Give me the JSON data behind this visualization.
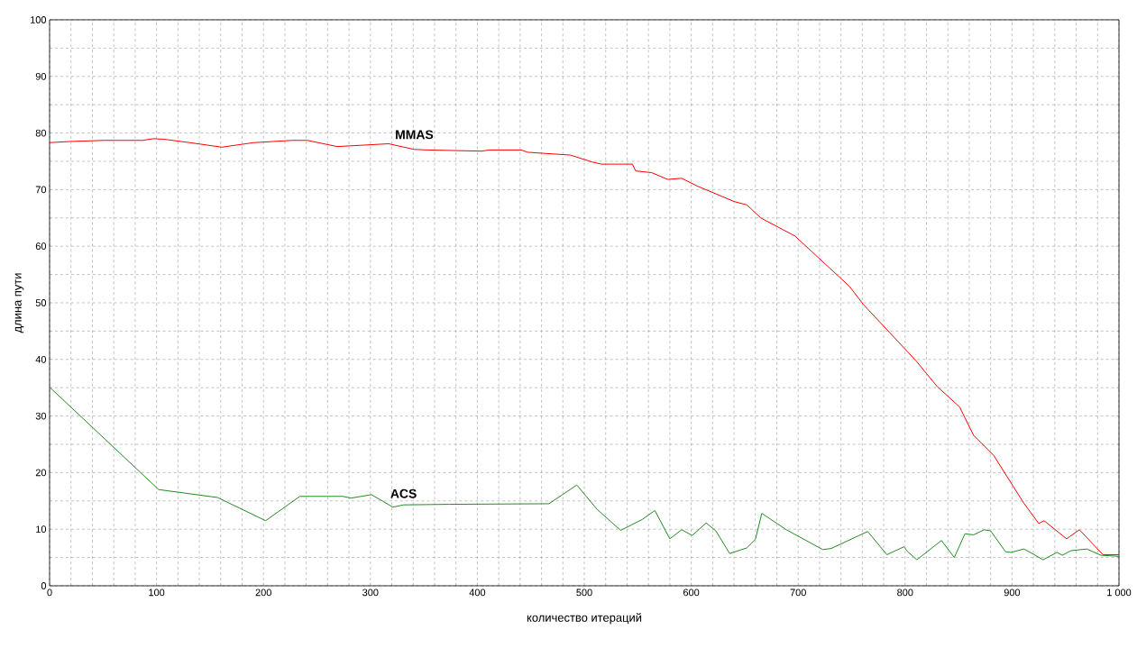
{
  "chart_data": {
    "type": "line",
    "xlabel": "количество итераций",
    "ylabel": "длина пути",
    "xlim": [
      0,
      1000
    ],
    "ylim": [
      0,
      100
    ],
    "xticks": [
      0,
      100,
      200,
      300,
      400,
      500,
      600,
      700,
      800,
      900,
      {
        "value": 1000,
        "label": "1 000"
      }
    ],
    "yticks": [
      0,
      10,
      20,
      30,
      40,
      50,
      60,
      70,
      80,
      90,
      100
    ],
    "grid": true,
    "legend": false,
    "marker": "none",
    "line_style": "solid",
    "series": [
      {
        "name": "MMAS",
        "color": "#ff0000",
        "x": [
          0,
          19,
          51,
          87,
          97,
          107,
          131,
          161,
          191,
          227,
          241,
          269,
          317,
          341,
          354,
          404,
          411,
          441,
          447,
          487,
          507,
          516,
          545,
          548,
          563,
          578,
          591,
          606,
          640,
          652,
          665,
          697,
          748,
          761,
          810,
          830,
          851,
          864,
          883,
          911,
          925,
          930,
          951,
          963,
          985,
          1000
        ],
        "values": [
          78.3,
          78.5,
          78.7,
          78.7,
          79,
          78.9,
          78.3,
          77.5,
          78.3,
          78.7,
          78.7,
          77.6,
          78.1,
          77.1,
          77,
          76.8,
          77,
          77,
          76.6,
          76.1,
          74.9,
          74.5,
          74.5,
          73.3,
          73,
          71.8,
          72,
          70.6,
          67.9,
          67.3,
          65,
          61.8,
          52.9,
          49.7,
          39.8,
          35.2,
          31.6,
          26.6,
          23,
          14.6,
          11,
          11.5,
          8.3,
          9.9,
          5.5,
          5.5
        ]
      },
      {
        "name": "ACS",
        "color": "#228b22",
        "x": [
          0,
          102,
          157,
          202,
          234,
          274,
          282,
          301,
          321,
          331,
          374,
          467,
          493,
          512,
          534,
          554,
          566,
          580,
          591,
          601,
          614,
          623,
          636,
          652,
          660,
          666,
          689,
          723,
          731,
          765,
          783,
          799,
          802,
          811,
          834,
          846,
          856,
          864,
          874,
          880,
          894,
          899,
          911,
          919,
          929,
          942,
          947,
          955,
          970,
          983,
          1000
        ],
        "values": [
          35.1,
          17,
          15.6,
          11.5,
          15.8,
          15.8,
          15.5,
          16.1,
          13.9,
          14.3,
          14.4,
          14.5,
          17.8,
          13.5,
          9.8,
          11.7,
          13.3,
          8.3,
          9.9,
          8.9,
          11.1,
          9.7,
          5.7,
          6.7,
          8.2,
          12.8,
          9.9,
          6.4,
          6.6,
          9.6,
          5.5,
          6.9,
          6.1,
          4.6,
          8,
          5,
          9.2,
          9,
          9.9,
          9.7,
          6,
          5.9,
          6.5,
          5.7,
          4.6,
          5.9,
          5.4,
          6.2,
          6.5,
          5.4,
          5.2
        ]
      }
    ]
  }
}
